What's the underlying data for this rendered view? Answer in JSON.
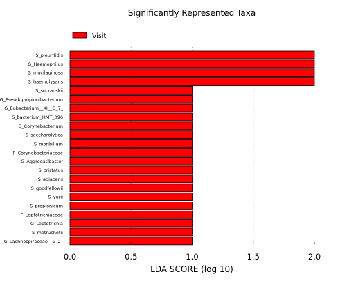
{
  "chart_data": {
    "type": "bar",
    "orientation": "horizontal",
    "title": "Significantly Represented Taxa",
    "xlabel": "LDA SCORE (log 10)",
    "ylabel": "",
    "xlim": [
      0.0,
      2.0
    ],
    "xticks": [
      "0.0",
      "0.5",
      "1.0",
      "1.5",
      "2.0"
    ],
    "grid": "vertical dashed",
    "legend_position": "top-left",
    "bar_color": "#ff0000",
    "bar_edge_color": "#000000",
    "categories": [
      "S_pleuritidis",
      "G_Haemophilus",
      "S_mucilaginosa",
      "S_haemolysans",
      "S_socranskii",
      "G_Pseudopropionibacterium",
      "G_Eubacterium__XI__G_7_",
      "S_bacterium_HMT_096",
      "G_Corynebacterium",
      "S_saccharolytica",
      "S_moribillum",
      "F_Corynebacteriaceae",
      "G_Aggregatibacter",
      "S_cristatus",
      "S_adiacens",
      "S_goodfellowii",
      "S_yurii",
      "S_propionicum",
      "F_Leptotrichiaceae",
      "G_Leptotrichia",
      "S_matruchotii",
      "G_Lachnospiraceae__G_2_"
    ],
    "series": [
      {
        "name": "Visit",
        "values": [
          2.0,
          2.0,
          2.0,
          2.0,
          1.0,
          1.0,
          1.0,
          1.0,
          1.0,
          1.0,
          1.0,
          1.0,
          1.0,
          1.0,
          1.0,
          1.0,
          1.0,
          1.0,
          1.0,
          1.0,
          1.0,
          1.0
        ]
      }
    ]
  }
}
